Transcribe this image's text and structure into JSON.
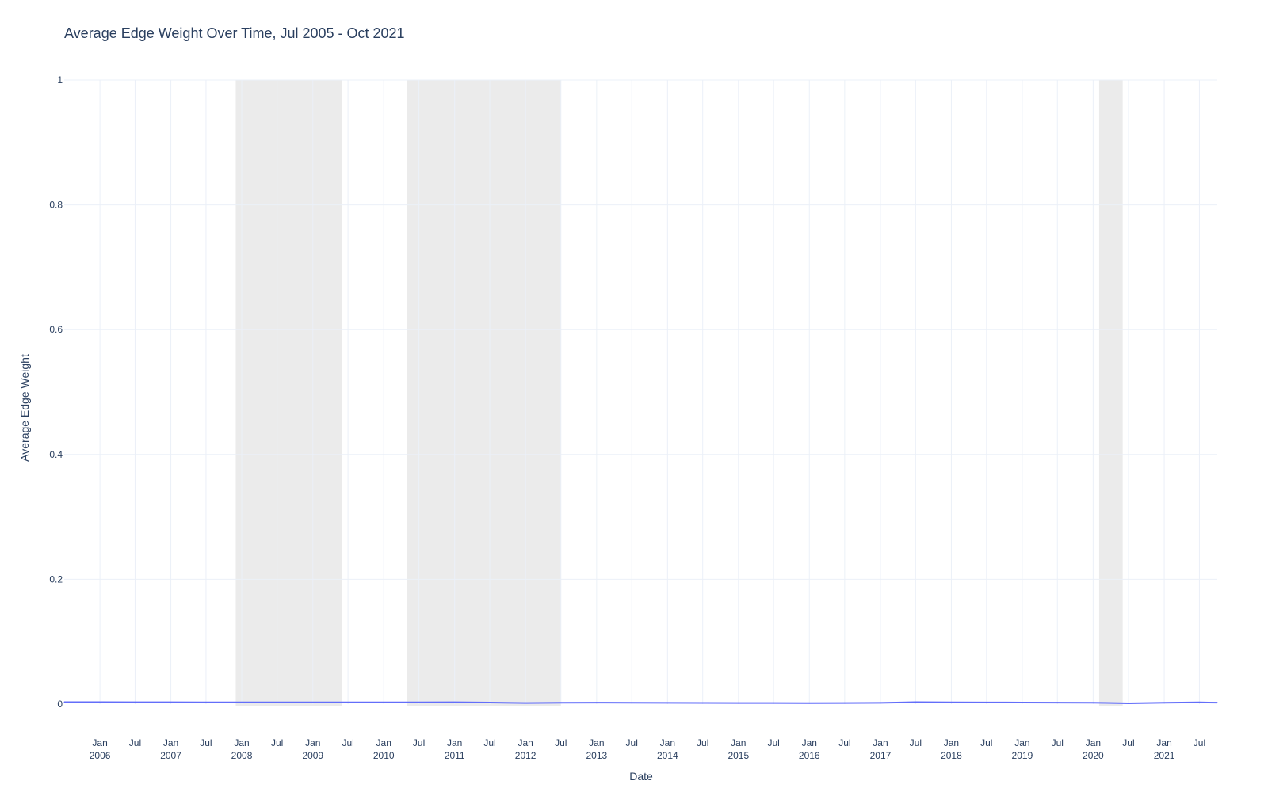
{
  "chart_data": {
    "type": "line",
    "title": "Average Edge Weight Over Time, Jul 2005 - Oct 2021",
    "xlabel": "Date",
    "ylabel": "Average Edge Weight",
    "xlim": [
      "2005-07-01",
      "2021-10-01"
    ],
    "ylim": [
      0,
      1
    ],
    "yticks": [
      0,
      0.2,
      0.4,
      0.6,
      0.8,
      1
    ],
    "yticklabels": [
      "0",
      "0.2",
      "0.4",
      "0.6",
      "0.8",
      "1"
    ],
    "xticks": [
      {
        "date": "2006-01-01",
        "label": "Jan",
        "year": "2006"
      },
      {
        "date": "2006-07-01",
        "label": "Jul",
        "year": ""
      },
      {
        "date": "2007-01-01",
        "label": "Jan",
        "year": "2007"
      },
      {
        "date": "2007-07-01",
        "label": "Jul",
        "year": ""
      },
      {
        "date": "2008-01-01",
        "label": "Jan",
        "year": "2008"
      },
      {
        "date": "2008-07-01",
        "label": "Jul",
        "year": ""
      },
      {
        "date": "2009-01-01",
        "label": "Jan",
        "year": "2009"
      },
      {
        "date": "2009-07-01",
        "label": "Jul",
        "year": ""
      },
      {
        "date": "2010-01-01",
        "label": "Jan",
        "year": "2010"
      },
      {
        "date": "2010-07-01",
        "label": "Jul",
        "year": ""
      },
      {
        "date": "2011-01-01",
        "label": "Jan",
        "year": "2011"
      },
      {
        "date": "2011-07-01",
        "label": "Jul",
        "year": ""
      },
      {
        "date": "2012-01-01",
        "label": "Jan",
        "year": "2012"
      },
      {
        "date": "2012-07-01",
        "label": "Jul",
        "year": ""
      },
      {
        "date": "2013-01-01",
        "label": "Jan",
        "year": "2013"
      },
      {
        "date": "2013-07-01",
        "label": "Jul",
        "year": ""
      },
      {
        "date": "2014-01-01",
        "label": "Jan",
        "year": "2014"
      },
      {
        "date": "2014-07-01",
        "label": "Jul",
        "year": ""
      },
      {
        "date": "2015-01-01",
        "label": "Jan",
        "year": "2015"
      },
      {
        "date": "2015-07-01",
        "label": "Jul",
        "year": ""
      },
      {
        "date": "2016-01-01",
        "label": "Jan",
        "year": "2016"
      },
      {
        "date": "2016-07-01",
        "label": "Jul",
        "year": ""
      },
      {
        "date": "2017-01-01",
        "label": "Jan",
        "year": "2017"
      },
      {
        "date": "2017-07-01",
        "label": "Jul",
        "year": ""
      },
      {
        "date": "2018-01-01",
        "label": "Jan",
        "year": "2018"
      },
      {
        "date": "2018-07-01",
        "label": "Jul",
        "year": ""
      },
      {
        "date": "2019-01-01",
        "label": "Jan",
        "year": "2019"
      },
      {
        "date": "2019-07-01",
        "label": "Jul",
        "year": ""
      },
      {
        "date": "2020-01-01",
        "label": "Jan",
        "year": "2020"
      },
      {
        "date": "2020-07-01",
        "label": "Jul",
        "year": ""
      },
      {
        "date": "2021-01-01",
        "label": "Jan",
        "year": "2021"
      },
      {
        "date": "2021-07-01",
        "label": "Jul",
        "year": ""
      }
    ],
    "shaded_regions": [
      {
        "start": "2007-12-01",
        "end": "2009-06-01"
      },
      {
        "start": "2010-05-01",
        "end": "2012-07-01"
      },
      {
        "start": "2020-02-01",
        "end": "2020-06-01"
      }
    ],
    "grid": true,
    "series": [
      {
        "color": "#636efa",
        "x": [
          "2005-07-01",
          "2006-01-01",
          "2006-07-01",
          "2007-01-01",
          "2007-07-01",
          "2008-01-01",
          "2008-07-01",
          "2009-01-01",
          "2009-07-01",
          "2010-01-01",
          "2010-07-01",
          "2011-01-01",
          "2011-07-01",
          "2012-01-01",
          "2012-07-01",
          "2013-01-01",
          "2013-07-01",
          "2014-01-01",
          "2014-07-01",
          "2015-01-01",
          "2015-07-01",
          "2016-01-01",
          "2016-07-01",
          "2017-01-01",
          "2017-07-01",
          "2018-01-01",
          "2018-07-01",
          "2019-01-01",
          "2019-07-01",
          "2020-01-01",
          "2020-07-01",
          "2021-01-01",
          "2021-07-01",
          "2021-10-01"
        ],
        "y": [
          0.0032,
          0.0031,
          0.003,
          0.003,
          0.0029,
          0.0029,
          0.0028,
          0.0028,
          0.0028,
          0.0028,
          0.0029,
          0.003,
          0.0025,
          0.0018,
          0.0022,
          0.0024,
          0.0022,
          0.002,
          0.0019,
          0.0018,
          0.0017,
          0.0016,
          0.0018,
          0.0021,
          0.0031,
          0.0029,
          0.0027,
          0.0026,
          0.0024,
          0.0023,
          0.0012,
          0.0022,
          0.0028,
          0.0024
        ]
      }
    ]
  },
  "colors": {
    "line": "#636efa",
    "grid": "#ebf0f8",
    "shade": "#ebebeb",
    "text": "#2a3f5f"
  }
}
